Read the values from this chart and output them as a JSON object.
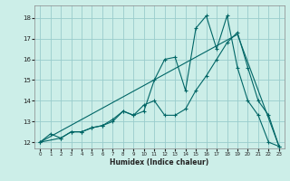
{
  "xlabel": "Humidex (Indice chaleur)",
  "bg_color": "#cceee8",
  "grid_color": "#99cccc",
  "line_color": "#006666",
  "xlim": [
    -0.5,
    23.5
  ],
  "ylim": [
    11.7,
    18.6
  ],
  "yticks": [
    12,
    13,
    14,
    15,
    16,
    17,
    18
  ],
  "xticks": [
    0,
    1,
    2,
    3,
    4,
    5,
    6,
    7,
    8,
    9,
    10,
    11,
    12,
    13,
    14,
    15,
    16,
    17,
    18,
    19,
    20,
    21,
    22,
    23
  ],
  "series1_x": [
    0,
    1,
    2,
    3,
    4,
    5,
    6,
    7,
    8,
    9,
    10,
    11,
    12,
    13,
    14,
    15,
    16,
    17,
    18,
    19,
    20,
    21,
    22,
    23
  ],
  "series1_y": [
    12.0,
    12.4,
    12.2,
    12.5,
    12.5,
    12.7,
    12.8,
    13.0,
    13.5,
    13.3,
    13.5,
    15.0,
    16.0,
    16.1,
    14.5,
    17.5,
    18.1,
    16.5,
    18.1,
    15.6,
    14.0,
    13.3,
    12.0,
    11.8
  ],
  "series2_x": [
    0,
    2,
    3,
    4,
    5,
    6,
    7,
    8,
    9,
    10,
    11,
    12,
    13,
    14,
    15,
    16,
    17,
    18,
    19,
    20,
    21,
    22,
    23
  ],
  "series2_y": [
    12.0,
    12.2,
    12.5,
    12.5,
    12.7,
    12.8,
    13.1,
    13.5,
    13.3,
    13.8,
    14.0,
    13.3,
    13.3,
    13.6,
    14.5,
    15.2,
    16.0,
    16.8,
    17.3,
    15.6,
    14.0,
    13.3,
    11.8
  ],
  "series3_x": [
    0,
    19,
    23
  ],
  "series3_y": [
    12.0,
    17.2,
    11.8
  ]
}
